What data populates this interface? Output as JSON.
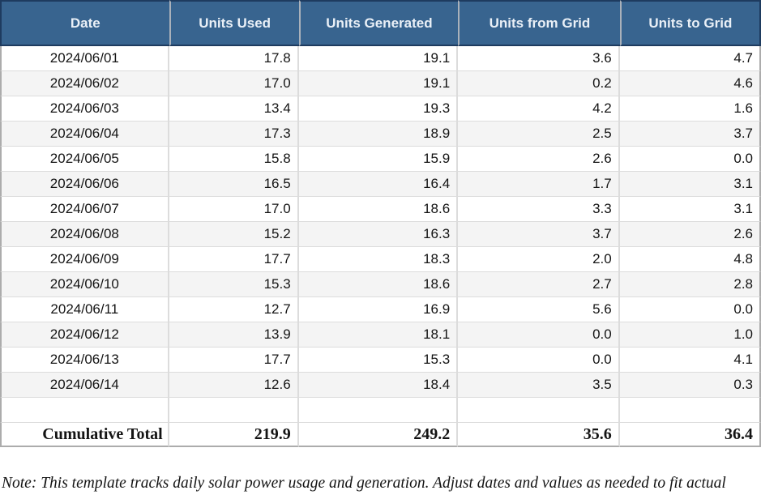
{
  "colors": {
    "header_bg": "#38648F",
    "header_border": "#1E3B5F",
    "header_divider": "#AAB1BA",
    "header_text": "#EAF0F7",
    "stripe": "#F4F4F4",
    "grid_line": "#DCDCDC",
    "outer_border": "#ACACAC",
    "text": "#141414"
  },
  "table": {
    "columns": [
      "Date",
      "Units Used",
      "Units Generated",
      "Units from Grid",
      "Units to Grid"
    ],
    "rows": [
      {
        "date": "2024/06/01",
        "used": "17.8",
        "generated": "19.1",
        "from_grid": "3.6",
        "to_grid": "4.7"
      },
      {
        "date": "2024/06/02",
        "used": "17.0",
        "generated": "19.1",
        "from_grid": "0.2",
        "to_grid": "4.6"
      },
      {
        "date": "2024/06/03",
        "used": "13.4",
        "generated": "19.3",
        "from_grid": "4.2",
        "to_grid": "1.6"
      },
      {
        "date": "2024/06/04",
        "used": "17.3",
        "generated": "18.9",
        "from_grid": "2.5",
        "to_grid": "3.7"
      },
      {
        "date": "2024/06/05",
        "used": "15.8",
        "generated": "15.9",
        "from_grid": "2.6",
        "to_grid": "0.0"
      },
      {
        "date": "2024/06/06",
        "used": "16.5",
        "generated": "16.4",
        "from_grid": "1.7",
        "to_grid": "3.1"
      },
      {
        "date": "2024/06/07",
        "used": "17.0",
        "generated": "18.6",
        "from_grid": "3.3",
        "to_grid": "3.1"
      },
      {
        "date": "2024/06/08",
        "used": "15.2",
        "generated": "16.3",
        "from_grid": "3.7",
        "to_grid": "2.6"
      },
      {
        "date": "2024/06/09",
        "used": "17.7",
        "generated": "18.3",
        "from_grid": "2.0",
        "to_grid": "4.8"
      },
      {
        "date": "2024/06/10",
        "used": "15.3",
        "generated": "18.6",
        "from_grid": "2.7",
        "to_grid": "2.8"
      },
      {
        "date": "2024/06/11",
        "used": "12.7",
        "generated": "16.9",
        "from_grid": "5.6",
        "to_grid": "0.0"
      },
      {
        "date": "2024/06/12",
        "used": "13.9",
        "generated": "18.1",
        "from_grid": "0.0",
        "to_grid": "1.0"
      },
      {
        "date": "2024/06/13",
        "used": "17.7",
        "generated": "15.3",
        "from_grid": "0.0",
        "to_grid": "4.1"
      },
      {
        "date": "2024/06/14",
        "used": "12.6",
        "generated": "18.4",
        "from_grid": "3.5",
        "to_grid": "0.3"
      }
    ],
    "total_label": "Cumulative Total",
    "totals": {
      "used": "219.9",
      "generated": "249.2",
      "from_grid": "35.6",
      "to_grid": "36.4"
    }
  },
  "note": "Note: This template tracks daily solar power usage and generation. Adjust dates and values as needed to fit actual"
}
